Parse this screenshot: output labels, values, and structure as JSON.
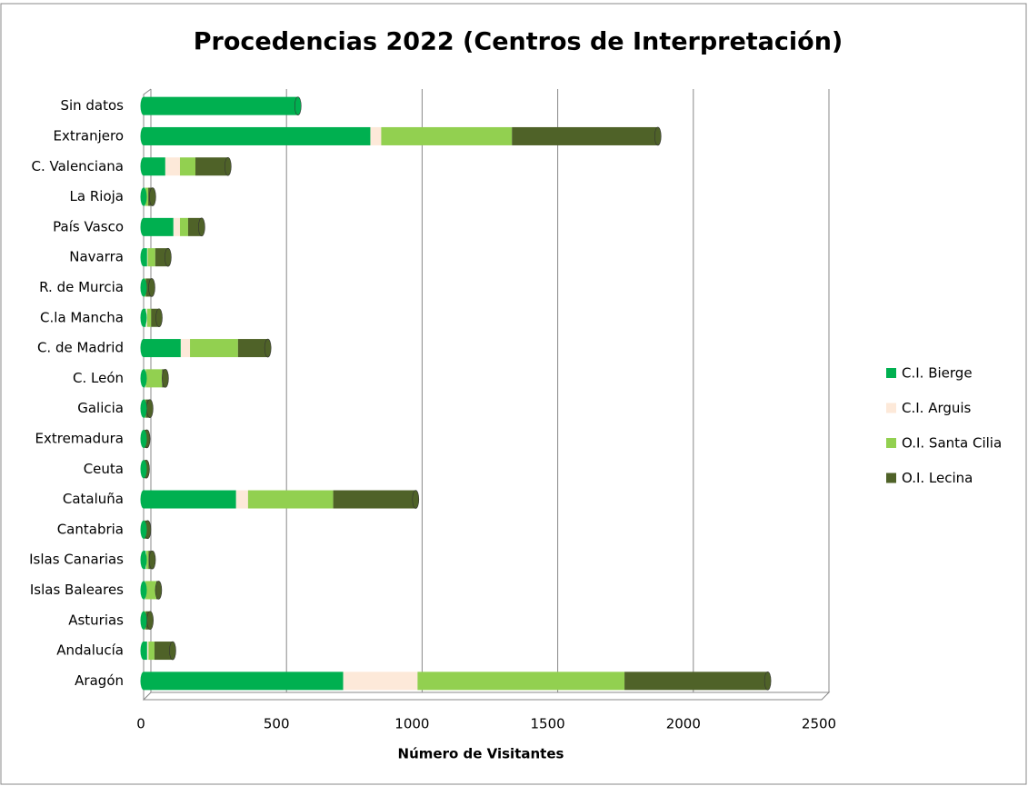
{
  "chart_data": {
    "type": "stacked_barh",
    "title": "Procedencias 2022 (Centros de Interpretación)",
    "x_label": "Número de Visitantes",
    "categories": [
      "Aragón",
      "Andalucía",
      "Asturias",
      "Islas Baleares",
      "Islas Canarias",
      "Cantabria",
      "Cataluña",
      "Ceuta",
      "Extremadura",
      "Galicia",
      "C. León",
      "C. de Madrid",
      "C.la Mancha",
      "R. de Murcia",
      "Navarra",
      "País Vasco",
      "La Rioja",
      "C. Valenciana",
      "Extranjero",
      "Sin datos"
    ],
    "series": [
      {
        "name": "C.I. Bierge",
        "color": "#00b050",
        "values": [
          736,
          13,
          3,
          5,
          8,
          3,
          341,
          1,
          2,
          5,
          5,
          137,
          8,
          3,
          13,
          110,
          5,
          80,
          836,
          569
        ]
      },
      {
        "name": "C.I. Arguis",
        "color": "#fde9d9",
        "values": [
          274,
          5,
          0,
          2,
          2,
          0,
          44,
          0,
          0,
          0,
          3,
          34,
          5,
          0,
          2,
          24,
          2,
          54,
          40,
          0
        ]
      },
      {
        "name": "O.I. Santa Cilia",
        "color": "#92d050",
        "values": [
          763,
          22,
          5,
          40,
          8,
          2,
          314,
          1,
          2,
          3,
          60,
          177,
          15,
          5,
          28,
          30,
          10,
          57,
          482,
          0
        ]
      },
      {
        "name": "O.I. Lecina",
        "color": "#4f6228",
        "values": [
          528,
          67,
          16,
          8,
          14,
          10,
          304,
          8,
          8,
          15,
          12,
          110,
          29,
          22,
          47,
          50,
          16,
          120,
          538,
          0
        ]
      }
    ],
    "xlim": [
      0,
      2500
    ],
    "xticks": [
      0,
      500,
      1000,
      1500,
      2000,
      2500
    ],
    "grid": true,
    "legend": "right"
  }
}
